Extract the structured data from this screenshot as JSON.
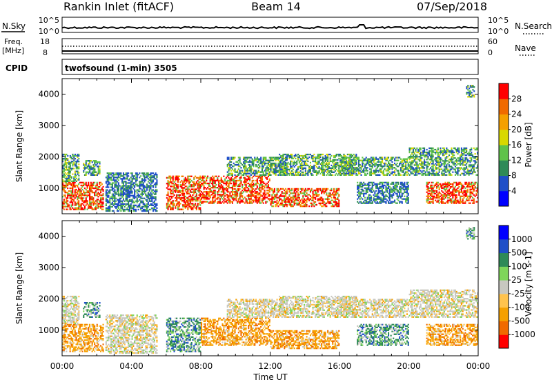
{
  "header": {
    "station": "Rankin Inlet (fitACF)",
    "beam": "Beam 14",
    "date": "07/Sep/2018"
  },
  "aux": {
    "nsky_label": "N.Sky",
    "nsearch_label": "N.Search",
    "nsky_ticks": [
      "10^5",
      "10^0"
    ],
    "nsearch_ticks": [
      "10^5",
      "10^0"
    ],
    "freq_label_line1": "Freq.",
    "freq_label_line2": "[MHz]",
    "freq_ticks": [
      "18",
      "8"
    ],
    "nave_label": "Nave",
    "nave_ticks": [
      "60",
      "0"
    ],
    "cpid_label": "CPID",
    "cpid_value": "twofsound (1-min) 3505"
  },
  "x_axis": {
    "title": "Time UT",
    "ticks": [
      "00:00",
      "04:00",
      "08:00",
      "12:00",
      "16:00",
      "20:00",
      "00:00"
    ]
  },
  "chart_data": [
    {
      "type": "heatmap",
      "name": "power-panel",
      "ylabel": "Slant Range [km]",
      "y_ticks": [
        1000,
        2000,
        3000,
        4000
      ],
      "ylim": [
        180,
        4500
      ],
      "xlim_hours": [
        0,
        24
      ],
      "colorbar_label": "Power [dB]",
      "colorbar_ticks": [
        "28",
        "24",
        "20",
        "16",
        "12",
        "8",
        "4"
      ],
      "colorbar_colors": [
        "#0000ff",
        "#1f4fc8",
        "#2e8a57",
        "#5fc24a",
        "#d8d800",
        "#f5a000",
        "#f06a00",
        "#ff0000"
      ],
      "regions": [
        {
          "t0": 0.0,
          "t1": 2.4,
          "r0": 300,
          "r1": 1200,
          "level": "high"
        },
        {
          "t0": 0.0,
          "t1": 1.0,
          "r0": 1200,
          "r1": 2100,
          "level": "mid"
        },
        {
          "t0": 1.2,
          "t1": 2.2,
          "r0": 1400,
          "r1": 1900,
          "level": "mid"
        },
        {
          "t0": 2.5,
          "t1": 5.5,
          "r0": 250,
          "r1": 1500,
          "level": "low"
        },
        {
          "t0": 6.0,
          "t1": 8.0,
          "r0": 300,
          "r1": 1400,
          "level": "high"
        },
        {
          "t0": 8.0,
          "t1": 12.0,
          "r0": 500,
          "r1": 1400,
          "level": "high"
        },
        {
          "t0": 9.5,
          "t1": 13.0,
          "r0": 1400,
          "r1": 2000,
          "level": "mid"
        },
        {
          "t0": 12.0,
          "t1": 16.0,
          "r0": 400,
          "r1": 1000,
          "level": "high"
        },
        {
          "t0": 12.5,
          "t1": 17.0,
          "r0": 1400,
          "r1": 2100,
          "level": "mid"
        },
        {
          "t0": 16.0,
          "t1": 20.0,
          "r0": 1400,
          "r1": 2000,
          "level": "mid"
        },
        {
          "t0": 17.0,
          "t1": 20.0,
          "r0": 500,
          "r1": 1200,
          "level": "low"
        },
        {
          "t0": 20.0,
          "t1": 24.0,
          "r0": 1400,
          "r1": 2300,
          "level": "mid"
        },
        {
          "t0": 21.0,
          "t1": 24.0,
          "r0": 500,
          "r1": 1200,
          "level": "high"
        },
        {
          "t0": 23.3,
          "t1": 23.8,
          "r0": 3900,
          "r1": 4300,
          "level": "mid"
        }
      ]
    },
    {
      "type": "heatmap",
      "name": "velocity-panel",
      "ylabel": "Slant Range [km]",
      "y_ticks": [
        1000,
        2000,
        3000,
        4000
      ],
      "ylim": [
        180,
        4500
      ],
      "xlim_hours": [
        0,
        24
      ],
      "colorbar_label": "Velocity [m s-1]",
      "colorbar_ticks": [
        "1000",
        "500",
        "100",
        "25",
        "-25",
        "-100",
        "-500",
        "-1000"
      ],
      "colorbar_colors": [
        "#ff0000",
        "#f06a00",
        "#f5a000",
        "#ffc34d",
        "#c8c8c0",
        "#7fd65a",
        "#2e8a57",
        "#1f4fc8",
        "#0000ff"
      ],
      "regions": [
        {
          "t0": 0.0,
          "t1": 2.4,
          "r0": 300,
          "r1": 1200,
          "level": "neg"
        },
        {
          "t0": 0.0,
          "t1": 1.0,
          "r0": 1200,
          "r1": 2100,
          "level": "zero"
        },
        {
          "t0": 1.2,
          "t1": 2.2,
          "r0": 1400,
          "r1": 1900,
          "level": "pos"
        },
        {
          "t0": 2.5,
          "t1": 5.5,
          "r0": 250,
          "r1": 1500,
          "level": "zero"
        },
        {
          "t0": 6.0,
          "t1": 8.0,
          "r0": 300,
          "r1": 1400,
          "level": "pos"
        },
        {
          "t0": 8.0,
          "t1": 12.0,
          "r0": 500,
          "r1": 1400,
          "level": "neg"
        },
        {
          "t0": 9.5,
          "t1": 13.0,
          "r0": 1400,
          "r1": 2000,
          "level": "zero"
        },
        {
          "t0": 12.0,
          "t1": 16.0,
          "r0": 400,
          "r1": 1000,
          "level": "neg"
        },
        {
          "t0": 12.5,
          "t1": 17.0,
          "r0": 1400,
          "r1": 2100,
          "level": "zero"
        },
        {
          "t0": 16.0,
          "t1": 20.0,
          "r0": 1400,
          "r1": 2000,
          "level": "zero"
        },
        {
          "t0": 17.0,
          "t1": 20.0,
          "r0": 500,
          "r1": 1200,
          "level": "pos"
        },
        {
          "t0": 20.0,
          "t1": 24.0,
          "r0": 1400,
          "r1": 2300,
          "level": "zero"
        },
        {
          "t0": 21.0,
          "t1": 24.0,
          "r0": 500,
          "r1": 1200,
          "level": "neg"
        },
        {
          "t0": 23.3,
          "t1": 23.8,
          "r0": 3900,
          "r1": 4300,
          "level": "pos"
        }
      ]
    }
  ]
}
